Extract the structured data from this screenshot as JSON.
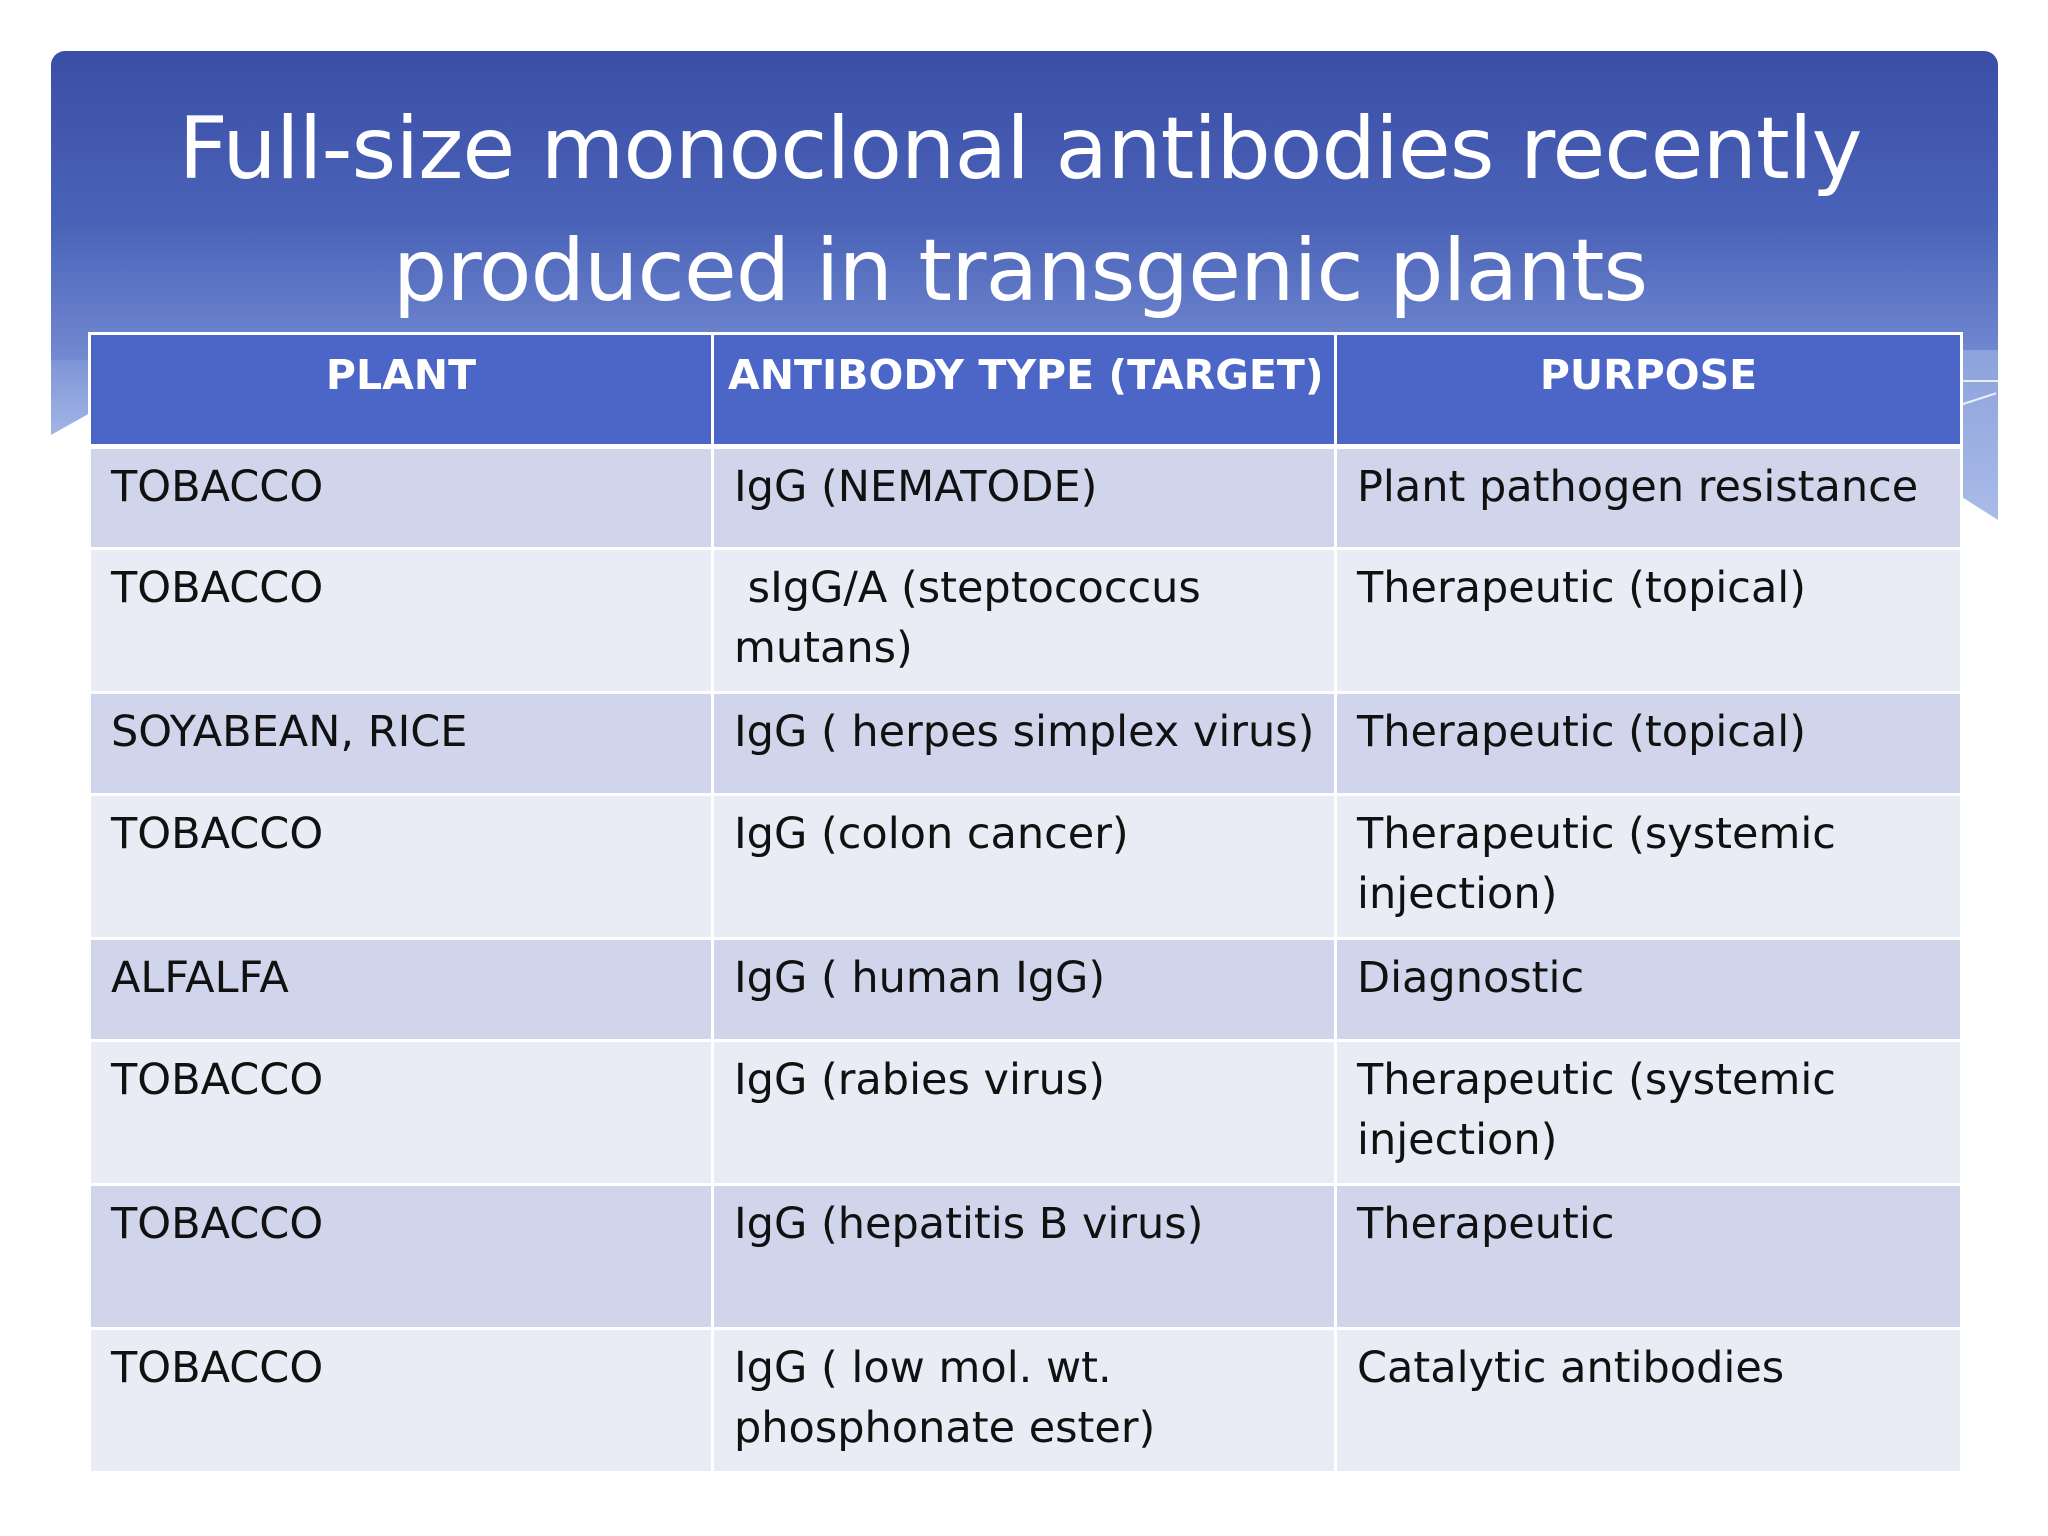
{
  "title": "Full-size monoclonal antibodies recently produced in transgenic plants",
  "table": {
    "headers": [
      "PLANT",
      "ANTIBODY TYPE (TARGET)",
      "PURPOSE"
    ],
    "rows": [
      [
        "TOBACCO",
        "IgG  (NEMATODE)",
        "Plant pathogen resistance"
      ],
      [
        "TOBACCO",
        " sIgG/A (steptococcus mutans)",
        "Therapeutic (topical)"
      ],
      [
        "SOYABEAN, RICE",
        "IgG  ( herpes simplex virus)",
        "Therapeutic  (topical)"
      ],
      [
        "TOBACCO",
        "IgG  (colon cancer)",
        "Therapeutic (systemic injection)"
      ],
      [
        "ALFALFA",
        "IgG ( human IgG)",
        "Diagnostic"
      ],
      [
        "TOBACCO",
        "IgG  (rabies virus)",
        "Therapeutic (systemic injection)"
      ],
      [
        "TOBACCO",
        "IgG  (hepatitis B virus)",
        "Therapeutic"
      ],
      [
        "TOBACCO",
        "IgG ( low mol. wt. phosphonate ester)",
        "Catalytic antibodies"
      ]
    ]
  },
  "colors": {
    "banner": "#4a63b8",
    "header_cell": "#4c66c7",
    "row_odd": "#d0d5eb",
    "row_even": "#e9ebf5"
  }
}
